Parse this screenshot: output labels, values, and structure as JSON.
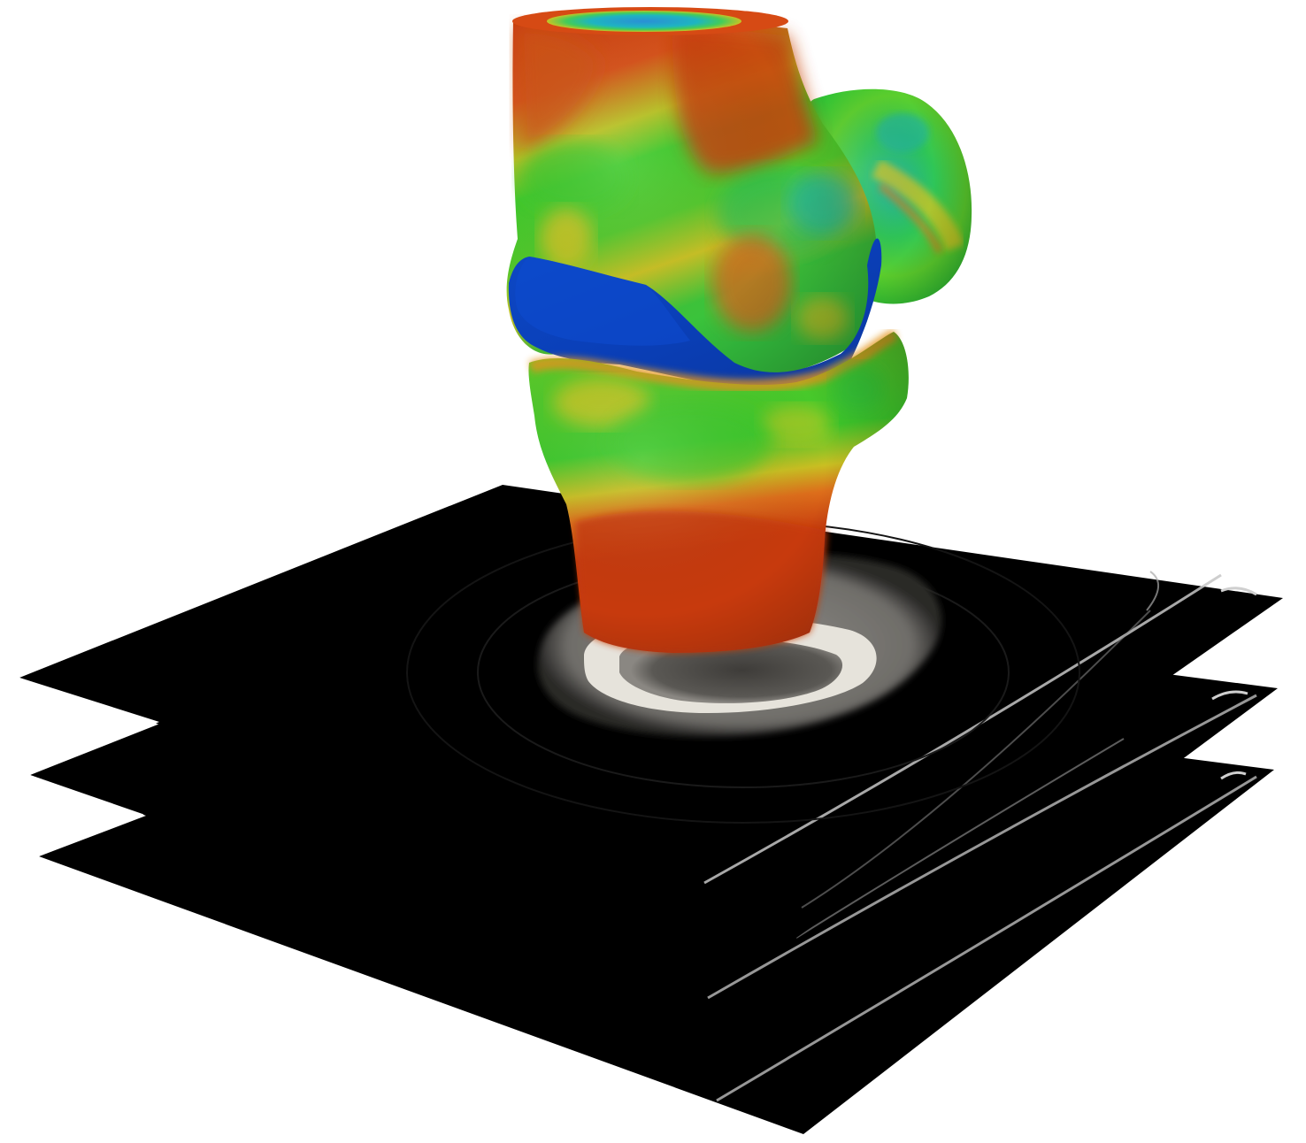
{
  "scene": {
    "background": "#ffffff",
    "slices": {
      "count": 3,
      "fill": "#000000",
      "bone_ring_color": "#e8e6df",
      "marrow_color": "#55534f",
      "soft_tissue_color": "#7c7a76",
      "artifact_arc_color": "#b8b8b8"
    },
    "model": {
      "palette": {
        "red": "#c83a0e",
        "orange": "#e6781e",
        "yellow": "#d8c520",
        "green": "#3ecb2a",
        "teal": "#1fb38a",
        "cyan": "#20b7c8",
        "blue": "#0a3fb8"
      },
      "parts": [
        "femur-model",
        "meniscus-cartilage",
        "patella-model",
        "tibia-model"
      ]
    }
  }
}
